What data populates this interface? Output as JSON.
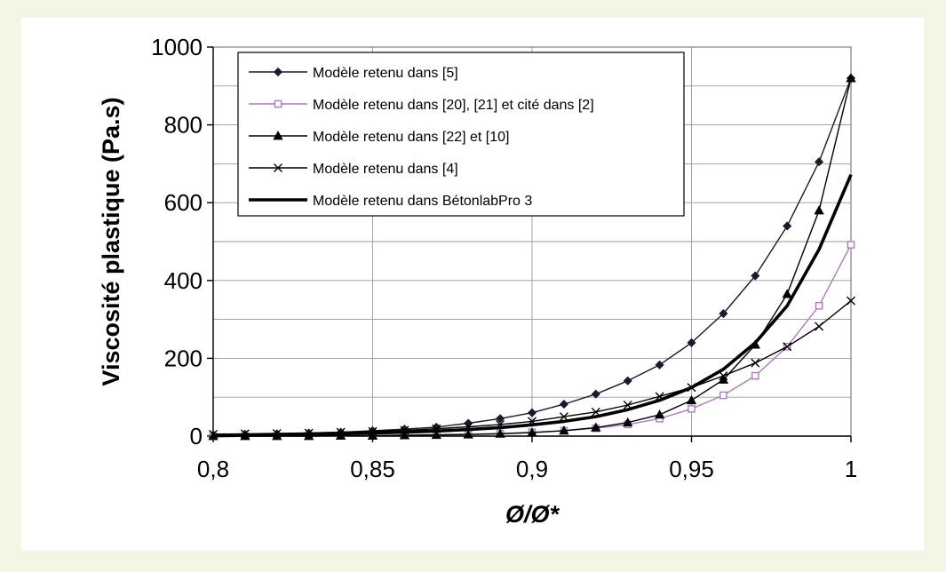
{
  "chart_data": {
    "type": "line",
    "title": "",
    "xlabel": "Ø/Ø*",
    "ylabel": "Viscosité plastique (Pa.s)",
    "xlim": [
      0.8,
      1.0
    ],
    "ylim": [
      0,
      1000
    ],
    "x_ticks": [
      0.8,
      0.85,
      0.9,
      0.95,
      1.0
    ],
    "x_tick_labels": [
      "0,8",
      "0,85",
      "0,9",
      "0,95",
      "1"
    ],
    "y_ticks": [
      0,
      200,
      400,
      600,
      800,
      1000
    ],
    "y_tick_labels": [
      "0",
      "200",
      "400",
      "600",
      "800",
      "1000"
    ],
    "grid": true,
    "legend_position": "top-left",
    "series": [
      {
        "name": "Modèle retenu dans [5]",
        "marker": "diamond-filled",
        "color": "#1a1a2e",
        "x": [
          0.8,
          0.81,
          0.82,
          0.83,
          0.84,
          0.85,
          0.86,
          0.87,
          0.88,
          0.89,
          0.9,
          0.91,
          0.92,
          0.93,
          0.94,
          0.95,
          0.96,
          0.97,
          0.98,
          0.99,
          1.0
        ],
        "y": [
          3,
          5,
          6,
          8,
          10,
          14,
          18,
          23,
          33,
          45,
          60,
          82,
          108,
          142,
          183,
          240,
          315,
          412,
          540,
          705,
          920
        ]
      },
      {
        "name": "Modèle retenu dans [20], [21] et cité dans [2]",
        "marker": "square-open",
        "color": "#b07ac0",
        "x": [
          0.8,
          0.81,
          0.82,
          0.83,
          0.84,
          0.85,
          0.86,
          0.87,
          0.88,
          0.89,
          0.9,
          0.91,
          0.92,
          0.93,
          0.94,
          0.95,
          0.96,
          0.97,
          0.98,
          0.99,
          1.0
        ],
        "y": [
          0,
          0,
          0,
          1,
          1,
          2,
          3,
          4,
          5,
          7,
          10,
          14,
          20,
          30,
          45,
          70,
          105,
          155,
          230,
          335,
          492
        ]
      },
      {
        "name": "Modèle retenu dans [22] et [10]",
        "marker": "triangle-filled",
        "color": "#000000",
        "x": [
          0.8,
          0.81,
          0.82,
          0.83,
          0.84,
          0.85,
          0.86,
          0.87,
          0.88,
          0.89,
          0.9,
          0.91,
          0.92,
          0.93,
          0.94,
          0.95,
          0.96,
          0.97,
          0.98,
          0.99,
          1.0
        ],
        "y": [
          0,
          0,
          0,
          0,
          1,
          1,
          2,
          3,
          4,
          6,
          9,
          14,
          22,
          35,
          55,
          92,
          145,
          235,
          365,
          580,
          920
        ]
      },
      {
        "name": "Modèle retenu dans [4]",
        "marker": "x",
        "color": "#000000",
        "x": [
          0.8,
          0.81,
          0.82,
          0.83,
          0.84,
          0.85,
          0.86,
          0.87,
          0.88,
          0.89,
          0.9,
          0.91,
          0.92,
          0.93,
          0.94,
          0.95,
          0.96,
          0.97,
          0.98,
          0.99,
          1.0
        ],
        "y": [
          5,
          6,
          7,
          8,
          10,
          12,
          15,
          19,
          24,
          30,
          38,
          50,
          62,
          80,
          102,
          125,
          155,
          188,
          230,
          282,
          348
        ]
      },
      {
        "name": "Modèle retenu dans BétonlabPro 3",
        "marker": "none",
        "color": "#000000",
        "bold": true,
        "x": [
          0.8,
          0.81,
          0.82,
          0.83,
          0.84,
          0.85,
          0.86,
          0.87,
          0.88,
          0.89,
          0.9,
          0.91,
          0.92,
          0.93,
          0.94,
          0.95,
          0.96,
          0.97,
          0.98,
          0.99,
          1.0
        ],
        "y": [
          1,
          2,
          3,
          4,
          6,
          8,
          10,
          13,
          17,
          22,
          29,
          38,
          50,
          68,
          92,
          125,
          172,
          240,
          335,
          480,
          672
        ]
      }
    ]
  }
}
